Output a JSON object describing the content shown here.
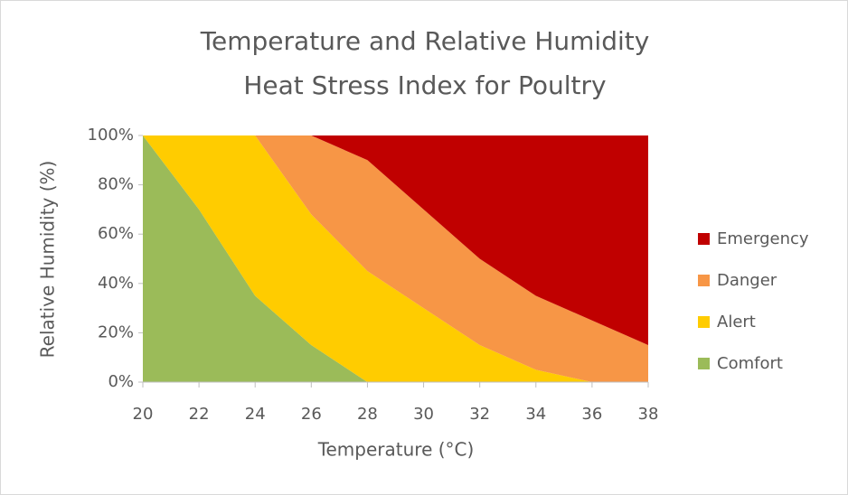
{
  "chart_data": {
    "type": "stacked_area",
    "title": [
      "Temperature and Relative Humidity",
      "Heat Stress Index for Poultry"
    ],
    "x_label": "Temperature (°C)",
    "y_label": "Relative Humidity (%)",
    "x": [
      20,
      22,
      24,
      26,
      28,
      30,
      32,
      34,
      36,
      38
    ],
    "series": [
      {
        "name": "Comfort",
        "color": "#9bbb59",
        "values": [
          100,
          70,
          35,
          15,
          0,
          0,
          0,
          0,
          0,
          0
        ]
      },
      {
        "name": "Alert",
        "color": "#ffcc00",
        "values": [
          0,
          30,
          65,
          53,
          45,
          30,
          15,
          5,
          0,
          0
        ]
      },
      {
        "name": "Danger",
        "color": "#f79646",
        "values": [
          0,
          0,
          0,
          32,
          45,
          40,
          35,
          30,
          25,
          15
        ]
      },
      {
        "name": "Emergency",
        "color": "#c00000",
        "values": [
          0,
          0,
          0,
          0,
          10,
          30,
          50,
          65,
          75,
          85
        ]
      }
    ],
    "xlim": [
      20,
      38
    ],
    "xticks": [
      20,
      22,
      24,
      26,
      28,
      30,
      32,
      34,
      36,
      38
    ],
    "ylim": [
      0,
      100
    ],
    "yticks": [
      {
        "value": 0,
        "label": "0%"
      },
      {
        "value": 20,
        "label": "20%"
      },
      {
        "value": 40,
        "label": "40%"
      },
      {
        "value": 60,
        "label": "60%"
      },
      {
        "value": 80,
        "label": "80%"
      },
      {
        "value": 100,
        "label": "100%"
      }
    ],
    "legend": "right"
  }
}
